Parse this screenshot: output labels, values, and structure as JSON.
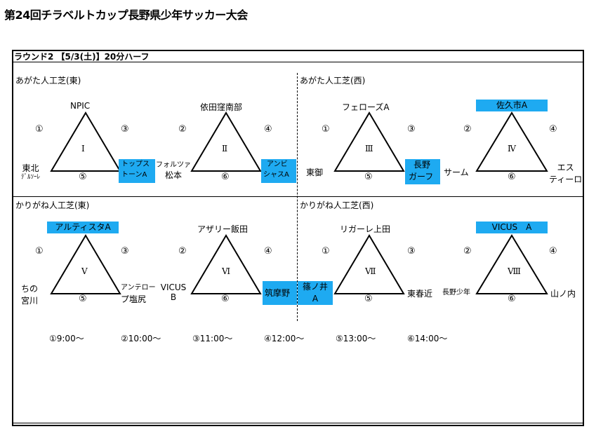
{
  "title": "第24回チラベルトカップ長野県少年サッカー大会",
  "round": "ラウンド2 【5/3(土)】20分ハーフ",
  "venues": {
    "agata_east": "あがた人工芝(東)",
    "agata_west": "あがた人工芝(西)",
    "karigane_east": "かりがね人工芝(東)",
    "karigane_west": "かりがね人工芝(西)"
  },
  "groups": [
    {
      "roman": "Ⅰ",
      "top": "NPIC",
      "left_lines": [
        "東北",
        "ﾃﾞﾙｿｰﾚ"
      ],
      "right_lines": [
        "トップス",
        "トーンA"
      ],
      "n_left": "①",
      "n_right": "③",
      "n_bottom": "⑤"
    },
    {
      "roman": "Ⅱ",
      "top": "依田窪南部",
      "left_lines": [
        "フォルツァ",
        "松本"
      ],
      "right_lines": [
        "アンビ",
        "シャスA"
      ],
      "n_left": "②",
      "n_right": "④",
      "n_bottom": "⑥"
    },
    {
      "roman": "Ⅲ",
      "top": "フェローズA",
      "left_lines": [
        "東御"
      ],
      "right_lines": [
        "長野",
        "ガーフ"
      ],
      "n_left": "①",
      "n_right": "③",
      "n_bottom": "⑤"
    },
    {
      "roman": "Ⅳ",
      "top": "佐久市A",
      "left_lines": [
        "サーム"
      ],
      "right_lines": [
        "エス",
        "ティーロ"
      ],
      "n_left": "②",
      "n_right": "④",
      "n_bottom": "⑥"
    },
    {
      "roman": "Ⅴ",
      "top": "アルティスタA",
      "left_lines": [
        "ちの",
        "宮川"
      ],
      "right_lines": [
        "アンテロー",
        "プ塩尻"
      ],
      "n_left": "①",
      "n_right": "③",
      "n_bottom": "⑤"
    },
    {
      "roman": "Ⅵ",
      "top": "アザリー飯田",
      "left_lines": [
        "VICUS",
        "B"
      ],
      "right_lines": [
        "筑摩野"
      ],
      "n_left": "②",
      "n_right": "④",
      "n_bottom": "⑥"
    },
    {
      "roman": "Ⅶ",
      "top": "リガーレ上田",
      "left_lines": [
        "篠ノ井",
        "A"
      ],
      "right_lines": [
        "東春近"
      ],
      "n_left": "①",
      "n_right": "③",
      "n_bottom": "⑤"
    },
    {
      "roman": "Ⅷ",
      "top": "VICUS　A",
      "left_lines": [
        "長野少年"
      ],
      "right_lines": [
        "山ノ内"
      ],
      "n_left": "②",
      "n_right": "④",
      "n_bottom": "⑥"
    }
  ],
  "schedule": [
    "①9:00～",
    "②10:00～",
    "③11:00～",
    "④12:00～",
    "⑤13:00～",
    "⑥14:00～"
  ],
  "colors": {
    "highlight": "#1eaaf1"
  }
}
